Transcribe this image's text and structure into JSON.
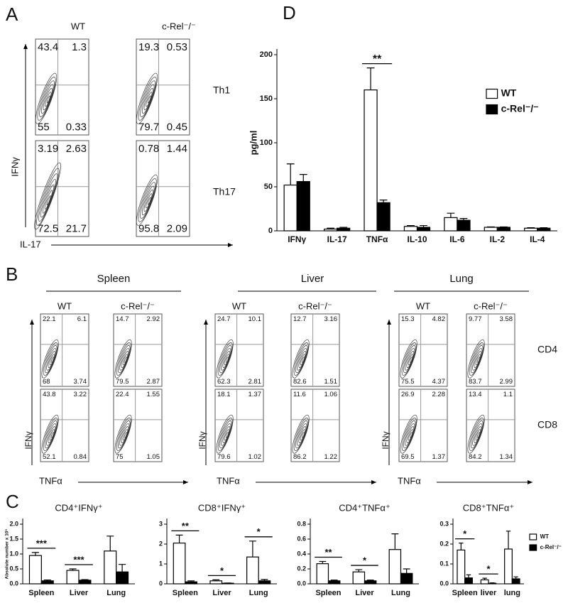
{
  "panel_labels": [
    "A",
    "B",
    "C",
    "D"
  ],
  "panel_a": {
    "columns": [
      "WT",
      "c-Rel⁻/⁻"
    ],
    "rows": [
      "Th1",
      "Th17"
    ],
    "y_label": "IFNγ",
    "x_label": "IL-17",
    "plots": [
      [
        [
          "43.4",
          "1.3",
          "55",
          "0.33"
        ],
        [
          "19.3",
          "0.53",
          "79.7",
          "0.45"
        ]
      ],
      [
        [
          "3.19",
          "2.63",
          "72.5",
          "21.7"
        ],
        [
          "0.78",
          "1.44",
          "95.8",
          "2.09"
        ]
      ]
    ]
  },
  "panel_b": {
    "columns": [
      "WT",
      "c-Rel⁻/⁻"
    ],
    "rows": [
      "CD4",
      "CD8"
    ],
    "y_label": "IFNγ",
    "x_label": "TNFα",
    "groups": [
      {
        "name": "Spleen",
        "plots": [
          [
            [
              "22.1",
              "6.1",
              "68",
              "3.74"
            ],
            [
              "14.7",
              "2.92",
              "79.5",
              "2.87"
            ]
          ],
          [
            [
              "43.8",
              "3.22",
              "52.1",
              "0.84"
            ],
            [
              "22.4",
              "1.55",
              "75",
              "1.05"
            ]
          ]
        ]
      },
      {
        "name": "Liver",
        "plots": [
          [
            [
              "24.7",
              "10.1",
              "62.3",
              "2.81"
            ],
            [
              "12.7",
              "3.16",
              "82.6",
              "1.51"
            ]
          ],
          [
            [
              "18.1",
              "1.37",
              "79.6",
              "1.02"
            ],
            [
              "11.6",
              "1.06",
              "86.2",
              "1.22"
            ]
          ]
        ]
      },
      {
        "name": "Lung",
        "plots": [
          [
            [
              "15.3",
              "4.82",
              "75.5",
              "4.37"
            ],
            [
              "9.77",
              "3.58",
              "83.7",
              "2.99"
            ]
          ],
          [
            [
              "26.9",
              "2.28",
              "69.5",
              "1.37"
            ],
            [
              "13.4",
              "1.1",
              "84.2",
              "1.34"
            ]
          ]
        ]
      }
    ]
  },
  "chart_data": [
    {
      "type": "bar",
      "y_label": "pg/ml",
      "categories": [
        "IFNγ",
        "IL-17",
        "TNFα",
        "IL-10",
        "IL-6",
        "IL-2",
        "IL-4"
      ],
      "series": [
        {
          "name": "WT",
          "color": "#ffffff",
          "values": [
            52,
            2,
            160,
            5,
            15,
            4,
            3
          ],
          "errors": [
            24,
            1,
            25,
            1,
            5,
            0.5,
            0.5
          ]
        },
        {
          "name": "c-Rel⁻/⁻",
          "color": "#000000",
          "values": [
            56,
            3,
            32,
            4,
            12,
            4,
            3
          ],
          "errors": [
            8,
            1,
            3,
            2,
            2,
            0.5,
            0.5
          ]
        }
      ],
      "ylim": [
        0,
        200
      ],
      "yticks": [
        0,
        50,
        100,
        150,
        200
      ],
      "legend": "upper right",
      "annotations": [
        {
          "text": "**",
          "category": "TNFα"
        }
      ]
    },
    {
      "type": "bar",
      "title": "CD4⁺IFNγ⁺",
      "y_label": "Absolute number x 10⁵",
      "categories": [
        "Spleen",
        "Liver",
        "Lung"
      ],
      "series": [
        {
          "name": "WT",
          "color": "#ffffff",
          "values": [
            0.95,
            0.45,
            1.1
          ],
          "errors": [
            0.1,
            0.05,
            0.5
          ]
        },
        {
          "name": "c-Rel⁻/⁻",
          "color": "#000000",
          "values": [
            0.1,
            0.12,
            0.4
          ],
          "errors": [
            0.03,
            0.02,
            0.25
          ]
        }
      ],
      "ylim": [
        0,
        2
      ],
      "yticks": [
        {
          "value": 0,
          "label": "0.0"
        },
        0.5,
        {
          "value": 1,
          "label": "1.0"
        },
        1.5,
        {
          "value": 2,
          "label": "2.0"
        }
      ],
      "legend": false,
      "annotations": [
        {
          "text": "***",
          "category": "Spleen"
        },
        {
          "text": "***",
          "category": "Liver"
        }
      ]
    },
    {
      "type": "bar",
      "title": "CD8⁺IFNγ⁺",
      "categories": [
        "Spleen",
        "Liver",
        "Lung"
      ],
      "series": [
        {
          "name": "WT",
          "color": "#ffffff",
          "values": [
            2.05,
            0.15,
            1.35
          ],
          "errors": [
            0.4,
            0.05,
            0.8
          ]
        },
        {
          "name": "c-Rel⁻/⁻",
          "color": "#000000",
          "values": [
            0.1,
            0.03,
            0.15
          ],
          "errors": [
            0.05,
            0.01,
            0.07
          ]
        }
      ],
      "ylim": [
        0,
        3
      ],
      "yticks": [
        0,
        1,
        2,
        3
      ],
      "legend": false,
      "annotations": [
        {
          "text": "**",
          "category": "Spleen"
        },
        {
          "text": "*",
          "category": "Liver"
        },
        {
          "text": "*",
          "category": "Lung"
        }
      ]
    },
    {
      "type": "bar",
      "title": "CD4⁺TNFα⁺",
      "categories": [
        "Spleen",
        "Liver",
        "Lung"
      ],
      "series": [
        {
          "name": "WT",
          "color": "#ffffff",
          "values": [
            0.27,
            0.16,
            0.46
          ],
          "errors": [
            0.03,
            0.03,
            0.21
          ]
        },
        {
          "name": "c-Rel⁻/⁻",
          "color": "#000000",
          "values": [
            0.04,
            0.04,
            0.14
          ],
          "errors": [
            0.01,
            0.01,
            0.06
          ]
        }
      ],
      "ylim": [
        0,
        0.8
      ],
      "yticks": [
        {
          "value": 0,
          "label": "0.0"
        },
        0.2,
        0.4,
        0.6,
        0.8
      ],
      "legend": false,
      "annotations": [
        {
          "text": "**",
          "category": "Spleen"
        },
        {
          "text": "*",
          "category": "Liver"
        }
      ]
    },
    {
      "type": "bar",
      "title": "CD8⁺TNFα⁺",
      "categories": [
        "Spleen",
        "liver",
        "lung"
      ],
      "series": [
        {
          "name": "WT",
          "color": "#ffffff",
          "values": [
            0.17,
            0.02,
            0.175
          ],
          "errors": [
            0.035,
            0.008,
            0.09
          ]
        },
        {
          "name": "c-Rel⁻/⁻",
          "color": "#000000",
          "values": [
            0.03,
            0.003,
            0.025
          ],
          "errors": [
            0.015,
            0.002,
            0.01
          ]
        }
      ],
      "ylim": [
        0,
        0.3
      ],
      "yticks": [
        {
          "value": 0,
          "label": "0.0"
        },
        0.1,
        0.2,
        0.3
      ],
      "legend": "right",
      "annotations": [
        {
          "text": "*",
          "category": "Spleen"
        },
        {
          "text": "*",
          "category": "liver"
        }
      ]
    }
  ]
}
